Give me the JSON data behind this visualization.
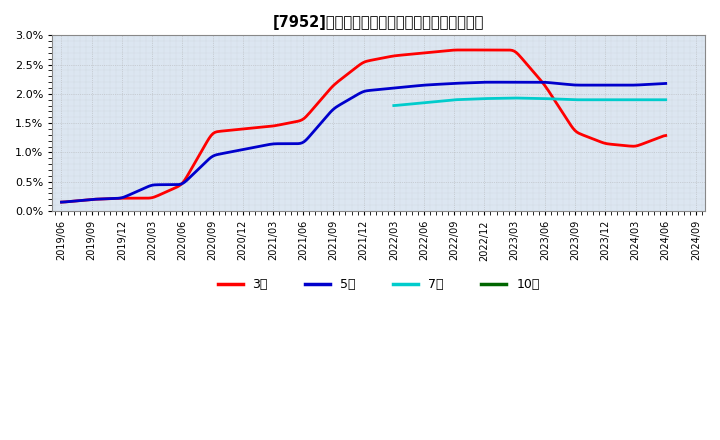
{
  "title": "[7952]　当期純利益マージンの標準偏差の推移",
  "ylim": [
    0.0,
    0.03
  ],
  "yticks": [
    0.0,
    0.005,
    0.01,
    0.015,
    0.02,
    0.025,
    0.03
  ],
  "ytick_labels": [
    "0.0%",
    "0.5%",
    "1.0%",
    "1.5%",
    "2.0%",
    "2.5%",
    "3.0%"
  ],
  "background_color": "#ffffff",
  "plot_bg_color": "#dce6f1",
  "grid_color": "#aaaaaa",
  "series": {
    "3年": {
      "color": "#ff0000",
      "dates": [
        "2019/06",
        "2019/09",
        "2019/12",
        "2020/03",
        "2020/06",
        "2020/09",
        "2020/12",
        "2021/03",
        "2021/06",
        "2021/09",
        "2021/12",
        "2022/03",
        "2022/06",
        "2022/09",
        "2022/12",
        "2023/03",
        "2023/06",
        "2023/09",
        "2023/12",
        "2024/03",
        "2024/06"
      ],
      "values": [
        0.0015,
        0.002,
        0.0022,
        0.0022,
        0.0045,
        0.0135,
        0.014,
        0.0145,
        0.0155,
        0.0215,
        0.0255,
        0.0265,
        0.027,
        0.0275,
        0.0275,
        0.0275,
        0.0215,
        0.0135,
        0.0115,
        0.011,
        0.013
      ]
    },
    "5年": {
      "color": "#0000cc",
      "dates": [
        "2019/06",
        "2019/09",
        "2019/12",
        "2020/03",
        "2020/06",
        "2020/09",
        "2020/12",
        "2021/03",
        "2021/06",
        "2021/09",
        "2021/12",
        "2022/03",
        "2022/06",
        "2022/09",
        "2022/12",
        "2023/03",
        "2023/06",
        "2023/09",
        "2023/12",
        "2024/03",
        "2024/06"
      ],
      "values": [
        0.0015,
        0.002,
        0.0022,
        0.0045,
        0.0045,
        0.0095,
        0.0105,
        0.0115,
        0.0115,
        0.0175,
        0.0205,
        0.021,
        0.0215,
        0.0218,
        0.022,
        0.022,
        0.022,
        0.0215,
        0.0215,
        0.0215,
        0.0218
      ]
    },
    "7年": {
      "color": "#00cccc",
      "dates": [
        "2022/03",
        "2022/06",
        "2022/09",
        "2022/12",
        "2023/03",
        "2023/06",
        "2023/09",
        "2023/12",
        "2024/03",
        "2024/06"
      ],
      "values": [
        0.018,
        0.0185,
        0.019,
        0.0192,
        0.0193,
        0.0192,
        0.019,
        0.019,
        0.019,
        0.019
      ]
    },
    "10年": {
      "color": "#006600",
      "dates": [],
      "values": []
    }
  },
  "legend_entries": [
    "3年",
    "5年",
    "7年",
    "10年"
  ],
  "legend_colors": [
    "#ff0000",
    "#0000cc",
    "#00cccc",
    "#006600"
  ],
  "xticklabels": [
    "2019/06",
    "2019/09",
    "2019/12",
    "2020/03",
    "2020/06",
    "2020/09",
    "2020/12",
    "2021/03",
    "2021/06",
    "2021/09",
    "2021/12",
    "2022/03",
    "2022/06",
    "2022/09",
    "2022/12",
    "2023/03",
    "2023/06",
    "2023/09",
    "2023/12",
    "2024/03",
    "2024/06",
    "2024/09"
  ]
}
